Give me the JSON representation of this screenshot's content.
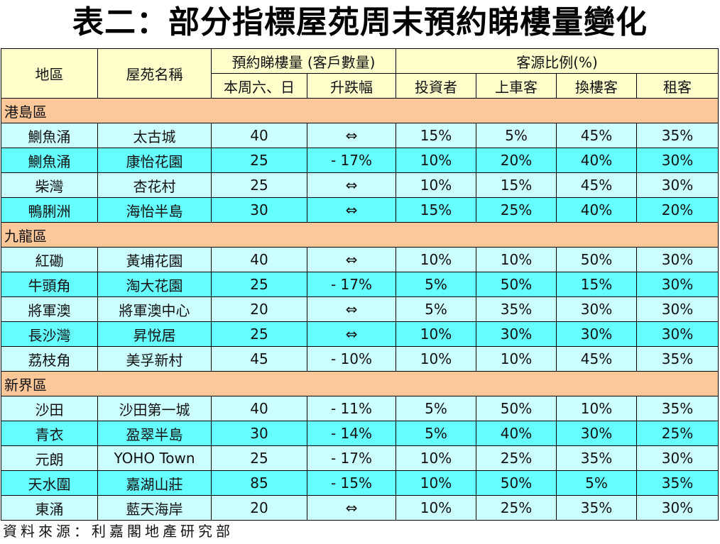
{
  "title": "表二：部分指標屋苑周末預約睇樓量變化",
  "headers": {
    "district": "地區",
    "estate": "屋苑名稱",
    "viewings_group": "預約睇樓量 (客戶數量)",
    "weekend": "本周六、日",
    "change": "升跌幅",
    "source_group": "客源比例(%)",
    "investor": "投資者",
    "first_buyer": "上車客",
    "upgrader": "換樓客",
    "tenant": "租客"
  },
  "sections": [
    {
      "name": "港島區",
      "rows": [
        [
          "鰂魚涌",
          "太古城",
          "40",
          "⇔",
          "15%",
          "5%",
          "45%",
          "35%"
        ],
        [
          "鰂魚涌",
          "康怡花園",
          "25",
          "- 17%",
          "10%",
          "20%",
          "40%",
          "30%"
        ],
        [
          "柴灣",
          "杏花村",
          "25",
          "⇔",
          "10%",
          "15%",
          "45%",
          "30%"
        ],
        [
          "鴨脷洲",
          "海怡半島",
          "30",
          "⇔",
          "15%",
          "25%",
          "40%",
          "20%"
        ]
      ]
    },
    {
      "name": "九龍區",
      "rows": [
        [
          "紅磡",
          "黃埔花園",
          "40",
          "⇔",
          "10%",
          "10%",
          "50%",
          "30%"
        ],
        [
          "牛頭角",
          "淘大花園",
          "25",
          "- 17%",
          "5%",
          "50%",
          "15%",
          "30%"
        ],
        [
          "將軍澳",
          "將軍澳中心",
          "20",
          "⇔",
          "5%",
          "35%",
          "30%",
          "30%"
        ],
        [
          "長沙灣",
          "昇悅居",
          "25",
          "⇔",
          "10%",
          "30%",
          "30%",
          "30%"
        ],
        [
          "荔枝角",
          "美孚新村",
          "45",
          "- 10%",
          "10%",
          "10%",
          "45%",
          "35%"
        ]
      ]
    },
    {
      "name": "新界區",
      "rows": [
        [
          "沙田",
          "沙田第一城",
          "40",
          "- 11%",
          "5%",
          "50%",
          "10%",
          "35%"
        ],
        [
          "青衣",
          "盈翠半島",
          "30",
          "- 14%",
          "5%",
          "40%",
          "30%",
          "25%"
        ],
        [
          "元朗",
          "YOHO Town",
          "25",
          "- 17%",
          "10%",
          "25%",
          "35%",
          "30%"
        ],
        [
          "天水圍",
          "嘉湖山莊",
          "85",
          "- 15%",
          "10%",
          "50%",
          "5%",
          "35%"
        ],
        [
          "東涌",
          "藍天海岸",
          "20",
          "⇔",
          "10%",
          "25%",
          "35%",
          "30%"
        ]
      ]
    }
  ],
  "source": "資料來源：利嘉閣地產研究部",
  "colors": {
    "header": "#ffffcc",
    "section": "#fcc89a",
    "row_light": "#ccffff",
    "row_dark": "#66ffff"
  }
}
